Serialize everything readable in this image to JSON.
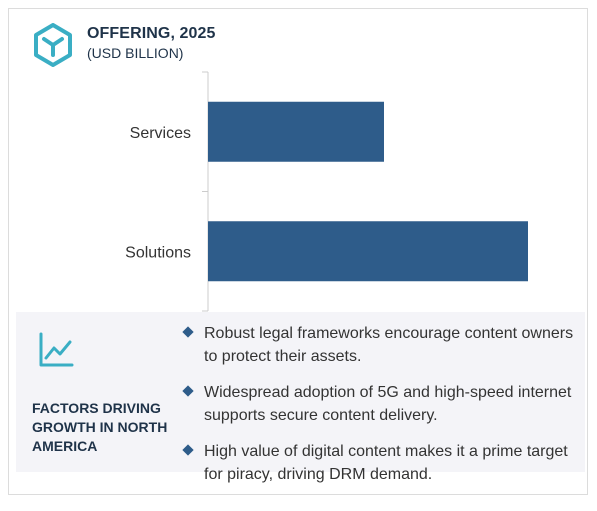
{
  "header": {
    "title": "OFFERING, 2025",
    "subtitle": "(USD BILLION)"
  },
  "chart_data": {
    "type": "bar",
    "orientation": "horizontal",
    "title": "OFFERING, 2025",
    "subtitle": "(USD BILLION)",
    "categories": [
      "Services",
      "Solutions"
    ],
    "series": [
      {
        "values": [
          0.55,
          1.0
        ]
      }
    ],
    "value_axis_shown": false,
    "bar_color": "#2e5c8a",
    "grid": false
  },
  "factors": {
    "title": "FACTORS DRIVING GROWTH IN NORTH AMERICA",
    "icon": "trend-chart-icon",
    "items": [
      "Robust legal frameworks encourage content owners to protect their assets.",
      "Widespread adoption of 5G and high-speed internet supports secure content delivery.",
      "High value of digital content makes it a prime target for piracy, driving DRM demand."
    ]
  },
  "colors": {
    "accent": "#2e5c8a",
    "logo": "#3aaec4",
    "heading": "#1f3349",
    "panel_bg": "#f4f4f8"
  }
}
